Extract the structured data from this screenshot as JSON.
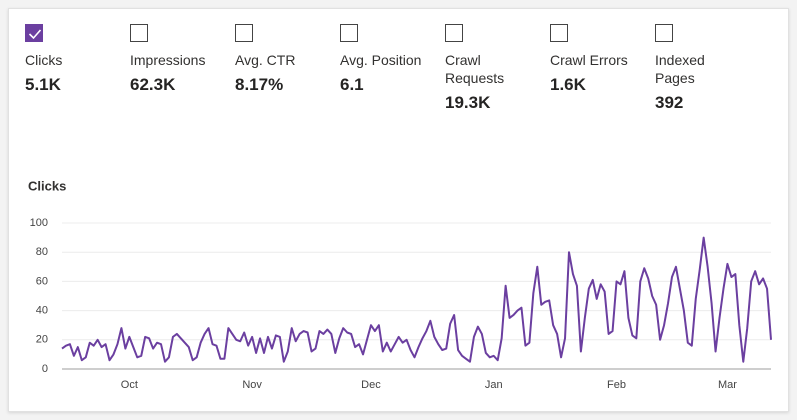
{
  "metrics": [
    {
      "label": "Clicks",
      "value": "5.1K",
      "checked": true
    },
    {
      "label": "Impressions",
      "value": "62.3K",
      "checked": false
    },
    {
      "label": "Avg. CTR",
      "value": "8.17%",
      "checked": false
    },
    {
      "label": "Avg. Position",
      "value": "6.1",
      "checked": false
    },
    {
      "label": "Crawl Requests",
      "value": "19.3K",
      "checked": false
    },
    {
      "label": "Crawl Errors",
      "value": "1.6K",
      "checked": false
    },
    {
      "label": "Indexed Pages",
      "value": "392",
      "checked": false
    }
  ],
  "chart_data": {
    "type": "line",
    "title": "Clicks",
    "color": "#6b3fa0",
    "grid": true,
    "ylim": [
      0,
      100
    ],
    "yticks": [
      0,
      20,
      40,
      60,
      80,
      100
    ],
    "categories": [
      null,
      null,
      null,
      null,
      null,
      null,
      null,
      null,
      null,
      null,
      null,
      null,
      null,
      null,
      null,
      null,
      null,
      "Oct",
      null,
      null,
      null,
      null,
      null,
      null,
      null,
      null,
      null,
      null,
      null,
      null,
      null,
      null,
      null,
      null,
      null,
      null,
      null,
      null,
      null,
      null,
      null,
      null,
      null,
      null,
      null,
      null,
      null,
      null,
      "Nov",
      null,
      null,
      null,
      null,
      null,
      null,
      null,
      null,
      null,
      null,
      null,
      null,
      null,
      null,
      null,
      null,
      null,
      null,
      null,
      null,
      null,
      null,
      null,
      null,
      null,
      null,
      null,
      null,
      null,
      "Dec",
      null,
      null,
      null,
      null,
      null,
      null,
      null,
      null,
      null,
      null,
      null,
      null,
      null,
      null,
      null,
      null,
      null,
      null,
      null,
      null,
      null,
      null,
      null,
      null,
      null,
      null,
      null,
      null,
      null,
      null,
      "Jan",
      null,
      null,
      null,
      null,
      null,
      null,
      null,
      null,
      null,
      null,
      null,
      null,
      null,
      null,
      null,
      null,
      null,
      null,
      null,
      null,
      null,
      null,
      null,
      null,
      null,
      null,
      null,
      null,
      null,
      null,
      "Feb",
      null,
      null,
      null,
      null,
      null,
      null,
      null,
      null,
      null,
      null,
      null,
      null,
      null,
      null,
      null,
      null,
      null,
      null,
      null,
      null,
      null,
      null,
      null,
      null,
      null,
      null,
      null,
      "Mar",
      null,
      null,
      null,
      null,
      null,
      null,
      null,
      null,
      null,
      null,
      null
    ],
    "values": [
      14,
      16,
      17,
      9,
      15,
      6,
      8,
      18,
      16,
      20,
      15,
      17,
      6,
      10,
      17,
      28,
      14,
      22,
      15,
      8,
      9,
      22,
      21,
      14,
      18,
      17,
      5,
      8,
      22,
      24,
      21,
      18,
      15,
      6,
      8,
      18,
      24,
      28,
      17,
      16,
      7,
      7,
      28,
      24,
      20,
      19,
      25,
      16,
      22,
      11,
      21,
      11,
      22,
      14,
      23,
      22,
      5,
      12,
      28,
      19,
      24,
      26,
      25,
      12,
      14,
      26,
      24,
      27,
      24,
      11,
      21,
      28,
      25,
      24,
      15,
      17,
      10,
      20,
      30,
      26,
      30,
      12,
      18,
      12,
      17,
      22,
      18,
      20,
      13,
      8,
      15,
      21,
      26,
      33,
      22,
      17,
      13,
      14,
      31,
      37,
      13,
      9,
      7,
      5,
      22,
      29,
      24,
      11,
      8,
      9,
      6,
      21,
      57,
      35,
      37,
      40,
      42,
      16,
      18,
      52,
      70,
      44,
      46,
      47,
      30,
      24,
      8,
      21,
      80,
      65,
      57,
      12,
      35,
      55,
      61,
      48,
      58,
      53,
      24,
      26,
      60,
      58,
      67,
      35,
      23,
      21,
      60,
      69,
      62,
      50,
      44,
      20,
      30,
      45,
      63,
      70,
      55,
      40,
      18,
      16,
      48,
      68,
      90,
      70,
      45,
      12,
      35,
      55,
      72,
      63,
      65,
      30,
      5,
      28,
      60,
      67,
      58,
      62,
      55,
      20
    ]
  }
}
